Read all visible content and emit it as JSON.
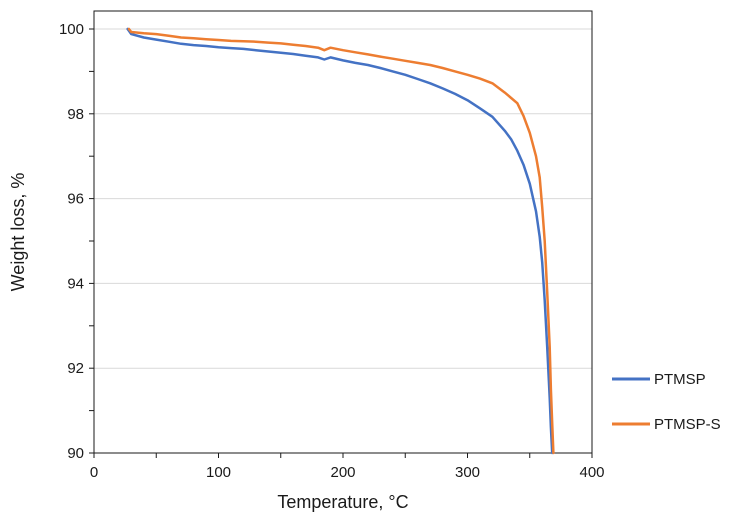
{
  "chart_data": {
    "type": "line",
    "title": "",
    "xlabel": "Temperature, °C",
    "ylabel": "Weight loss, %",
    "xlim": [
      0,
      400
    ],
    "ylim": [
      90,
      100
    ],
    "x_ticks": [
      0,
      100,
      200,
      300,
      400
    ],
    "y_ticks": [
      90,
      92,
      94,
      96,
      98,
      100
    ],
    "x_tick_labels": [
      "0",
      "100",
      "200",
      "300",
      "400"
    ],
    "y_tick_labels": [
      "90",
      "92",
      "94",
      "96",
      "98",
      "100"
    ],
    "grid": "horizontal",
    "legend_position": "right",
    "series": [
      {
        "name": "PTMSP",
        "color": "#4472C4",
        "x": [
          27,
          30,
          40,
          50,
          60,
          70,
          80,
          90,
          100,
          110,
          120,
          130,
          140,
          150,
          160,
          170,
          180,
          185,
          190,
          200,
          210,
          220,
          230,
          240,
          250,
          260,
          270,
          280,
          290,
          300,
          310,
          320,
          330,
          335,
          340,
          345,
          350,
          355,
          358,
          360,
          362,
          364,
          366,
          367,
          368
        ],
        "y": [
          100.0,
          99.88,
          99.8,
          99.75,
          99.7,
          99.65,
          99.62,
          99.6,
          99.57,
          99.55,
          99.53,
          99.5,
          99.47,
          99.44,
          99.41,
          99.37,
          99.33,
          99.28,
          99.33,
          99.26,
          99.2,
          99.15,
          99.08,
          99.0,
          98.92,
          98.82,
          98.72,
          98.6,
          98.47,
          98.32,
          98.13,
          97.93,
          97.6,
          97.4,
          97.13,
          96.8,
          96.35,
          95.7,
          95.1,
          94.5,
          93.6,
          92.5,
          91.3,
          90.6,
          90.0
        ]
      },
      {
        "name": "PTMSP-S",
        "color": "#ED7D31",
        "x": [
          28,
          30,
          40,
          50,
          60,
          70,
          80,
          90,
          100,
          110,
          120,
          130,
          140,
          150,
          160,
          170,
          180,
          185,
          190,
          200,
          210,
          220,
          230,
          240,
          250,
          260,
          270,
          280,
          290,
          300,
          310,
          320,
          330,
          340,
          345,
          350,
          355,
          358,
          360,
          362,
          364,
          366,
          367,
          368,
          369
        ],
        "y": [
          100.0,
          99.93,
          99.9,
          99.88,
          99.84,
          99.8,
          99.78,
          99.76,
          99.74,
          99.72,
          99.71,
          99.7,
          99.68,
          99.66,
          99.63,
          99.6,
          99.56,
          99.5,
          99.56,
          99.5,
          99.45,
          99.4,
          99.35,
          99.3,
          99.25,
          99.2,
          99.15,
          99.08,
          99.0,
          98.92,
          98.83,
          98.72,
          98.5,
          98.25,
          97.95,
          97.55,
          97.0,
          96.5,
          95.8,
          95.0,
          93.8,
          92.5,
          91.5,
          90.7,
          90.0
        ]
      }
    ]
  }
}
